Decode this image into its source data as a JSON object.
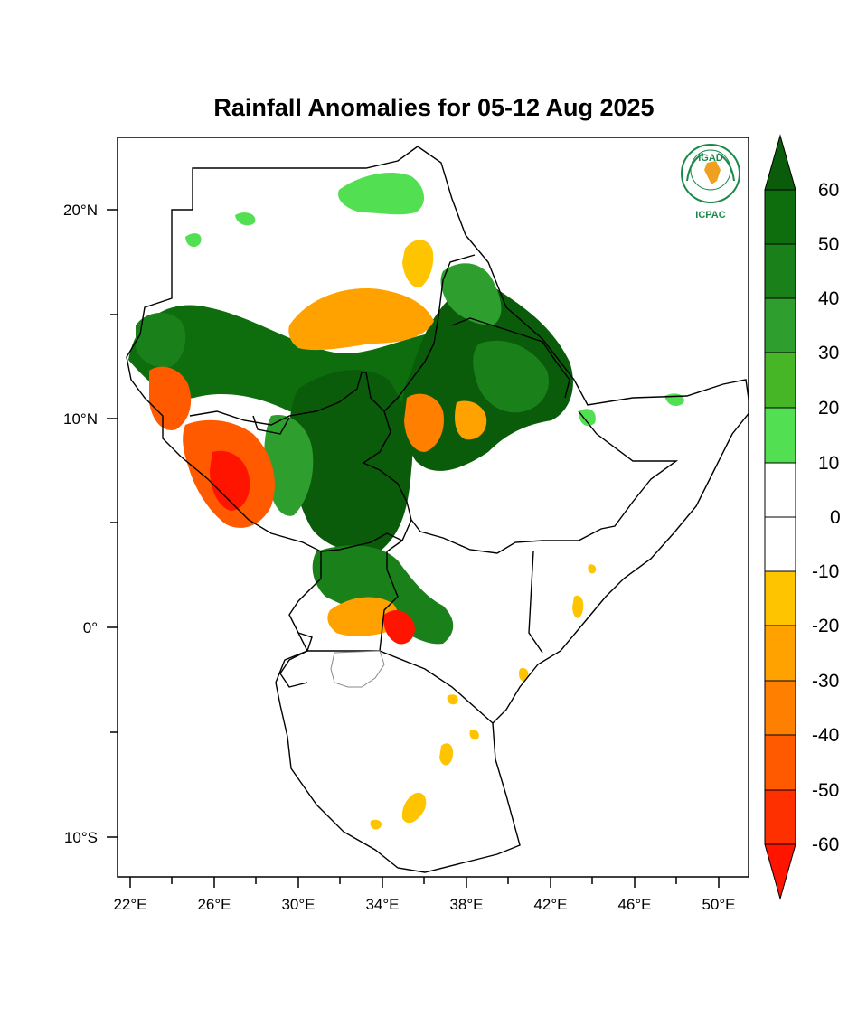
{
  "title": "Rainfall Anomalies for 05-12 Aug 2025",
  "logo": {
    "top_text": "IGAD",
    "bottom_text": "ICPAC",
    "color": "#1a8a4a",
    "accent": "#f0a020"
  },
  "axes": {
    "lat_labels": [
      "20°N",
      "10°N",
      "0°",
      "10°S"
    ],
    "lon_labels": [
      "22°E",
      "26°E",
      "30°E",
      "34°E",
      "38°E",
      "42°E",
      "46°E",
      "50°E"
    ]
  },
  "colorbar": {
    "labels": [
      "60",
      "50",
      "40",
      "30",
      "20",
      "10",
      "0",
      "-10",
      "-20",
      "-30",
      "-40",
      "-50",
      "-60"
    ],
    "colors": {
      "g60": "#0a5c0a",
      "g50": "#0e6e0e",
      "g40": "#1a801a",
      "g30": "#2e9e2e",
      "g20": "#46b526",
      "g10": "#52e052",
      "w": "#ffffff",
      "o10": "#ffc400",
      "o20": "#ffa200",
      "o30": "#ff7f00",
      "o40": "#ff5a00",
      "o50": "#ff3000",
      "o60": "#ff1400"
    }
  }
}
